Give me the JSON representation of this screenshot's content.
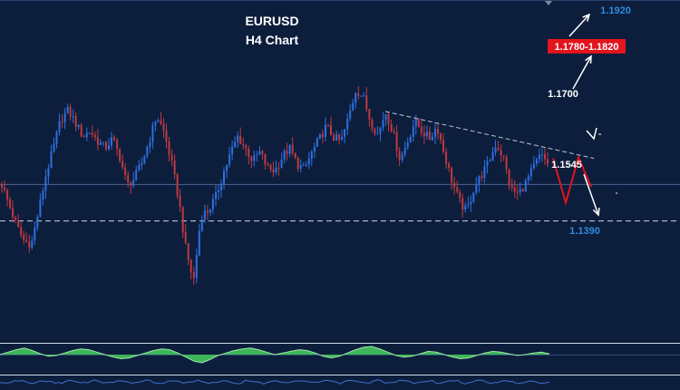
{
  "chart_data": {
    "type": "candlestick",
    "title": "EURUSD",
    "subtitle": "H4 Chart",
    "xlabel": "",
    "ylabel": "",
    "ylim": [
      1.133,
      1.196
    ],
    "colors": {
      "background": "#0c1e3c",
      "candle_up": "#2f6fe0",
      "candle_down": "#c0393f",
      "projection": "#e2141c",
      "level_label": "#2f8ce0",
      "zone_label_bg": "#e2141c",
      "oscillator_fill": "#3fb55a",
      "oscillator_line": "#9fe8a8"
    },
    "price_close": [
      1.162,
      1.158,
      1.154,
      1.1512,
      1.1505,
      1.157,
      1.164,
      1.169,
      1.1745,
      1.1762,
      1.1738,
      1.1712,
      1.1722,
      1.1703,
      1.169,
      1.1708,
      1.1672,
      1.1618,
      1.1632,
      1.1662,
      1.1705,
      1.1752,
      1.172,
      1.1662,
      1.159,
      1.149,
      1.1435,
      1.156,
      1.157,
      1.1596,
      1.164,
      1.168,
      1.1712,
      1.169,
      1.1665,
      1.1682,
      1.1652,
      1.1646,
      1.1672,
      1.169,
      1.166,
      1.1648,
      1.168,
      1.1706,
      1.1732,
      1.171,
      1.1702,
      1.1748,
      1.1802,
      1.1788,
      1.174,
      1.1715,
      1.176,
      1.1722,
      1.1668,
      1.1702,
      1.1742,
      1.1722,
      1.1708,
      1.1732,
      1.1678,
      1.1628,
      1.1588,
      1.1568,
      1.1612,
      1.1638,
      1.1662,
      1.1698,
      1.1672,
      1.161,
      1.1602,
      1.1622,
      1.165,
      1.1676,
      1.1662
    ],
    "levels": [
      {
        "value": 1.192,
        "label": "1.1920"
      },
      {
        "value": 1.17,
        "label": "1.1700"
      },
      {
        "value": 1.1545,
        "label": "1.1545"
      },
      {
        "value": 1.139,
        "label": "1.1390"
      }
    ],
    "zone": {
      "label": "1.1780-1.1820",
      "low": 1.178,
      "high": 1.182
    },
    "horizontal_lines": [
      1.162,
      1.155
    ],
    "trendline": {
      "from": 1.176,
      "to": 1.167
    },
    "projection_path": [
      1.167,
      1.1585,
      1.1672,
      1.1615
    ],
    "oscillator": [
      0.0,
      0.3,
      0.6,
      0.8,
      0.5,
      0.1,
      -0.2,
      -0.1,
      0.2,
      0.5,
      0.7,
      0.6,
      0.3,
      0.0,
      -0.3,
      -0.5,
      -0.4,
      -0.1,
      0.2,
      0.5,
      0.7,
      0.6,
      0.2,
      -0.3,
      -0.8,
      -1.0,
      -0.6,
      -0.1,
      0.2,
      0.5,
      0.7,
      0.8,
      0.6,
      0.3,
      0.0,
      0.2,
      0.4,
      0.6,
      0.5,
      0.2,
      -0.2,
      -0.4,
      -0.2,
      0.2,
      0.6,
      0.9,
      1.0,
      0.7,
      0.3,
      -0.1,
      -0.3,
      -0.2,
      0.1,
      0.4,
      0.3,
      0.0,
      -0.3,
      -0.5,
      -0.4,
      -0.1,
      0.2,
      0.4,
      0.3,
      0.1,
      -0.1,
      0.0,
      0.2,
      0.3,
      0.1
    ]
  }
}
